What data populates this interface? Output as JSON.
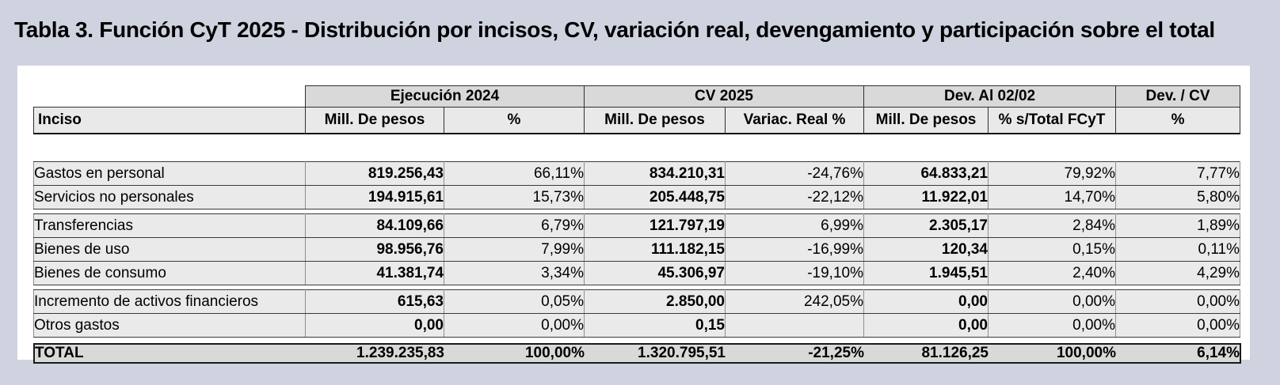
{
  "title": "Tabla 3. Función CyT 2025 - Distribución por incisos, CV, variación real, devengamiento y participación sobre el total",
  "colors": {
    "page_background": "#ced3df",
    "panel_background": "#ffffff",
    "group_header_fill": "#d9d9d9",
    "subheader_fill": "#e9e9e9",
    "row_fill": "#eaeaea",
    "total_fill": "#d9d9d9",
    "highlight": "#ffff00",
    "border": "#2f2f2f"
  },
  "chart_data": {
    "type": "table",
    "title": "Tabla 3. Función CyT 2025 - Distribución por incisos, CV, variación real, devengamiento y participación sobre el total",
    "col_groups": [
      {
        "label": "Ejecución 2024",
        "span": 2
      },
      {
        "label": "CV 2025",
        "span": 2
      },
      {
        "label": "Dev. Al 02/02",
        "span": 2
      },
      {
        "label": "Dev. / CV",
        "span": 1
      }
    ],
    "columns": [
      "Inciso",
      "Mill. De pesos",
      "%",
      "Mill. De pesos",
      "Variac. Real %",
      "Mill. De pesos",
      "% s/Total FCyT",
      "%"
    ],
    "row_groups": [
      {
        "rows": [
          {
            "inciso": "Gastos en personal",
            "cells": [
              "819.256,43",
              "66,11%",
              "834.210,31",
              "-24,76%",
              "64.833,21",
              "79,92%",
              "7,77%"
            ],
            "highlights": [
              3,
              5
            ]
          },
          {
            "inciso": "Servicios no personales",
            "cells": [
              "194.915,61",
              "15,73%",
              "205.448,75",
              "-22,12%",
              "11.922,01",
              "14,70%",
              "5,80%"
            ],
            "highlights": [
              3,
              5
            ]
          }
        ]
      },
      {
        "rows": [
          {
            "inciso": "Transferencias",
            "cells": [
              "84.109,66",
              "6,79%",
              "121.797,19",
              "6,99%",
              "2.305,17",
              "2,84%",
              "1,89%"
            ],
            "highlights": [
              6
            ]
          },
          {
            "inciso": "Bienes de uso",
            "cells": [
              "98.956,76",
              "7,99%",
              "111.182,15",
              "-16,99%",
              "120,34",
              "0,15%",
              "0,11%"
            ],
            "highlights": [
              6
            ]
          },
          {
            "inciso": "Bienes de consumo",
            "cells": [
              "41.381,74",
              "3,34%",
              "45.306,97",
              "-19,10%",
              "1.945,51",
              "2,40%",
              "4,29%"
            ],
            "highlights": [
              6
            ]
          }
        ]
      },
      {
        "rows": [
          {
            "inciso": "Incremento de activos financieros",
            "cells": [
              "615,63",
              "0,05%",
              "2.850,00",
              "242,05%",
              "0,00",
              "0,00%",
              "0,00%"
            ],
            "highlights": []
          },
          {
            "inciso": "Otros gastos",
            "cells": [
              "0,00",
              "0,00%",
              "0,15",
              "",
              "0,00",
              "0,00%",
              "0,00%"
            ],
            "highlights": []
          }
        ]
      }
    ],
    "total_row": {
      "label": "TOTAL",
      "cells": [
        "1.239.235,83",
        "100,00%",
        "1.320.795,51",
        "-21,25%",
        "81.126,25",
        "100,00%",
        "6,14%"
      ]
    }
  }
}
